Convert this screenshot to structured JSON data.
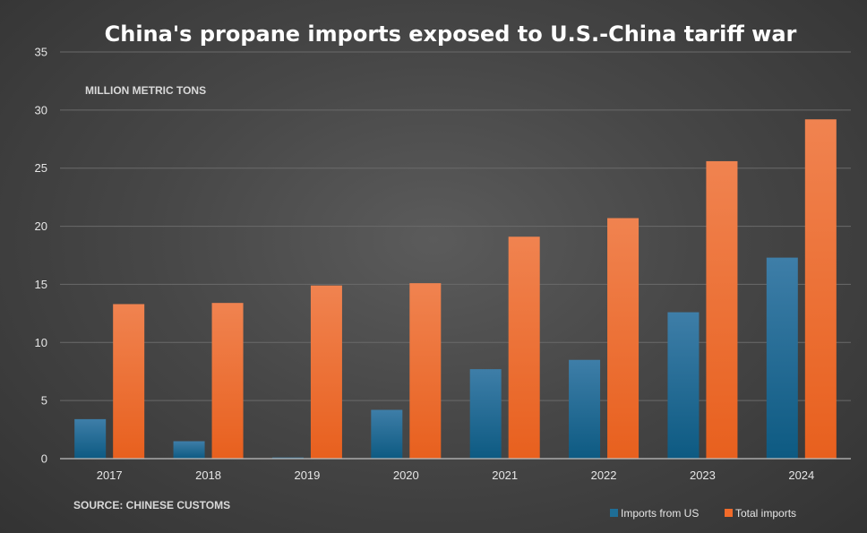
{
  "chart_data": {
    "type": "bar",
    "title": "China's propane imports exposed to U.S.-China tariff war",
    "ylabel": "MILLION METRIC TONS",
    "xlabel": "",
    "source": "SOURCE: CHINESE CUSTOMS",
    "ylim": [
      0,
      35
    ],
    "yticks": [
      0,
      5,
      10,
      15,
      20,
      25,
      30,
      35
    ],
    "categories": [
      "2017",
      "2018",
      "2019",
      "2020",
      "2021",
      "2022",
      "2023",
      "2024"
    ],
    "series": [
      {
        "name": "Imports from US",
        "color": "#1f6e96",
        "values": [
          3.4,
          1.5,
          0.1,
          4.2,
          7.7,
          8.5,
          12.6,
          17.3
        ]
      },
      {
        "name": "Total imports",
        "color": "#f26b2a",
        "values": [
          13.3,
          13.4,
          14.9,
          15.1,
          19.1,
          20.7,
          25.6,
          29.2
        ]
      }
    ],
    "legend_position": "bottom-right",
    "grid": true
  }
}
